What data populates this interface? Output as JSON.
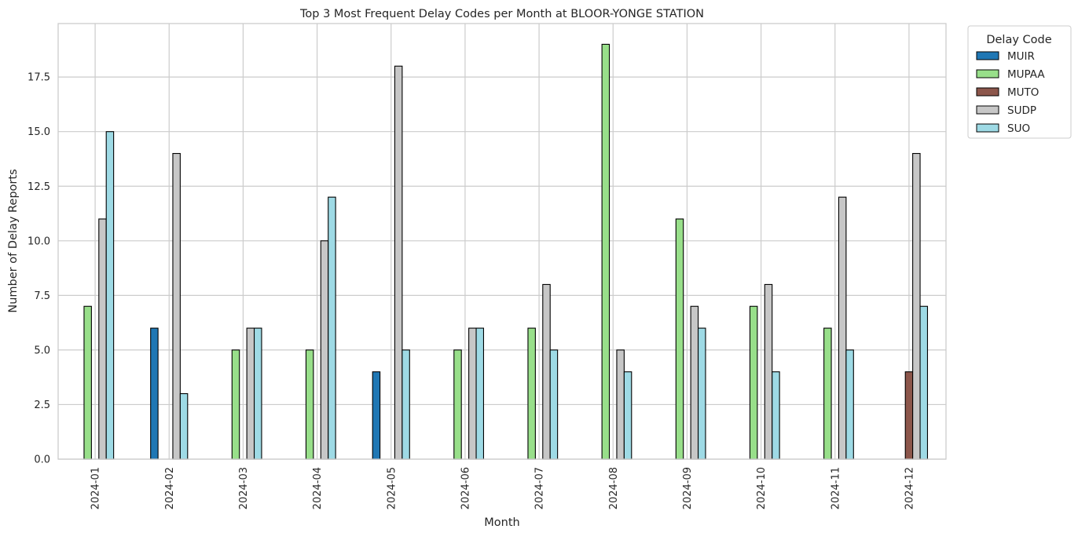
{
  "chart_data": {
    "type": "bar",
    "title": "Top 3 Most Frequent Delay Codes per Month at BLOOR-YONGE STATION",
    "xlabel": "Month",
    "ylabel": "Number of Delay Reports",
    "categories": [
      "2024-01",
      "2024-02",
      "2024-03",
      "2024-04",
      "2024-05",
      "2024-06",
      "2024-07",
      "2024-08",
      "2024-09",
      "2024-10",
      "2024-11",
      "2024-12"
    ],
    "series": [
      {
        "name": "MUIR",
        "color": "#1f77b4",
        "values": [
          0,
          6,
          0,
          0,
          4,
          0,
          0,
          0,
          0,
          0,
          0,
          0
        ]
      },
      {
        "name": "MUPAA",
        "color": "#98df8a",
        "values": [
          7,
          0,
          5,
          5,
          0,
          5,
          6,
          19,
          11,
          7,
          6,
          0
        ]
      },
      {
        "name": "MUTO",
        "color": "#8c564b",
        "values": [
          0,
          0,
          0,
          0,
          0,
          0,
          0,
          0,
          0,
          0,
          0,
          4
        ]
      },
      {
        "name": "SUDP",
        "color": "#c7c7c7",
        "values": [
          11,
          14,
          6,
          10,
          18,
          6,
          8,
          5,
          7,
          8,
          12,
          14
        ]
      },
      {
        "name": "SUO",
        "color": "#9edae5",
        "values": [
          15,
          3,
          6,
          12,
          5,
          6,
          5,
          4,
          6,
          4,
          5,
          7
        ]
      }
    ],
    "ylim": [
      0,
      19.95
    ],
    "yticks": [
      "0.0",
      "2.5",
      "5.0",
      "7.5",
      "10.0",
      "12.5",
      "15.0",
      "17.5"
    ],
    "grid": true,
    "legend": {
      "title": "Delay Code",
      "placement": "outside-top-right"
    }
  }
}
